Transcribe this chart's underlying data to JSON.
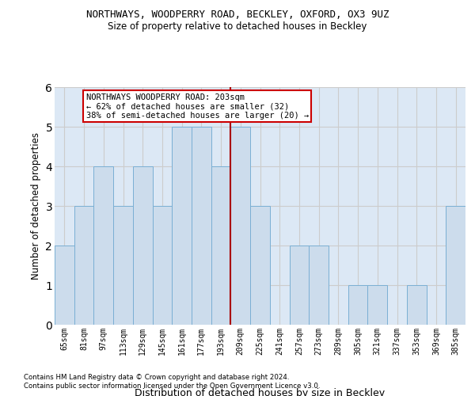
{
  "title1": "NORTHWAYS, WOODPERRY ROAD, BECKLEY, OXFORD, OX3 9UZ",
  "title2": "Size of property relative to detached houses in Beckley",
  "xlabel": "Distribution of detached houses by size in Beckley",
  "ylabel": "Number of detached properties",
  "footnote1": "Contains HM Land Registry data © Crown copyright and database right 2024.",
  "footnote2": "Contains public sector information licensed under the Open Government Licence v3.0.",
  "annotation_line1": "NORTHWAYS WOODPERRY ROAD: 203sqm",
  "annotation_line2": "← 62% of detached houses are smaller (32)",
  "annotation_line3": "38% of semi-detached houses are larger (20) →",
  "bar_labels": [
    "65sqm",
    "81sqm",
    "97sqm",
    "113sqm",
    "129sqm",
    "145sqm",
    "161sqm",
    "177sqm",
    "193sqm",
    "209sqm",
    "225sqm",
    "241sqm",
    "257sqm",
    "273sqm",
    "289sqm",
    "305sqm",
    "321sqm",
    "337sqm",
    "353sqm",
    "369sqm",
    "385sqm"
  ],
  "bar_values": [
    2,
    3,
    4,
    3,
    4,
    3,
    5,
    5,
    4,
    5,
    3,
    0,
    2,
    2,
    0,
    1,
    1,
    0,
    1,
    0,
    3
  ],
  "bar_color": "#ccdcec",
  "bar_edge_color": "#7aafd4",
  "vline_color": "#aa0000",
  "annotation_box_color": "#ffffff",
  "annotation_box_edge": "#cc0000",
  "ylim": [
    0,
    6
  ],
  "yticks": [
    0,
    1,
    2,
    3,
    4,
    5,
    6
  ],
  "grid_color": "#cccccc",
  "bg_color": "#dce8f5",
  "fig_bg": "#ffffff"
}
